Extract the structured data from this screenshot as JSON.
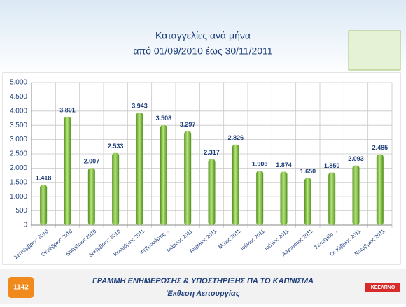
{
  "chart_data": {
    "type": "bar",
    "title": "Καταγγελίες ανά μήνα",
    "subtitle": "από 01/09/2010 έως 30/11/2011",
    "categories": [
      "Σεπτέμβριος 2010",
      "Οκτώβριος 2010",
      "Νοέμβριος 2010",
      "Δεκέμβριος 2010",
      "Ιανουάριος 2011",
      "Φεβρουάριος...",
      "Μάρτιος 2011",
      "Απρίλιος 2011",
      "Μάιος 2011",
      "Ιούνιος 2011",
      "Ιούλιος 2011",
      "Αύγουστος 2011",
      "Σεπτέμβρ...",
      "Οκτώβριος 2011",
      "Νοέμβριος 2011"
    ],
    "values": [
      1418,
      3801,
      2007,
      2533,
      3943,
      3508,
      3297,
      2317,
      2826,
      1906,
      1874,
      1650,
      1850,
      2093,
      2485
    ],
    "value_labels": [
      "1.418",
      "3.801",
      "2.007",
      "2.533",
      "3.943",
      "3.508",
      "3.297",
      "2.317",
      "2.826",
      "1.906",
      "1.874",
      "1.650",
      "1.850",
      "2.093",
      "2.485"
    ],
    "color": "#7cc242",
    "ylim": [
      0,
      5000
    ],
    "yticks": [
      0,
      500,
      {
        "value": 1000,
        "label": "1.000"
      },
      {
        "value": 1500,
        "label": "1.500"
      },
      {
        "value": 2000,
        "label": "2.000"
      },
      {
        "value": 2500,
        "label": "2.500"
      },
      {
        "value": 3000,
        "label": "3.000"
      },
      {
        "value": 3500,
        "label": "3.500"
      },
      {
        "value": 4000,
        "label": "4.000"
      },
      {
        "value": 4500,
        "label": "4.500"
      },
      {
        "value": 5000,
        "label": "5.000"
      }
    ],
    "grid": true
  },
  "footer": {
    "title": "ΓΡΑΜΜΗ ΕΝΗΜΕΡΩΣΗΣ & ΥΠΟΣΤΗΡΙΞΗΣ ΠΑ ΤΟ ΚΑΠΝΙΣΜΑ",
    "subtitle": "Έκθεση Λειτουργίας",
    "left_logo": "1142",
    "right_logo": "ΚΕΕΛΠΝΟ"
  }
}
